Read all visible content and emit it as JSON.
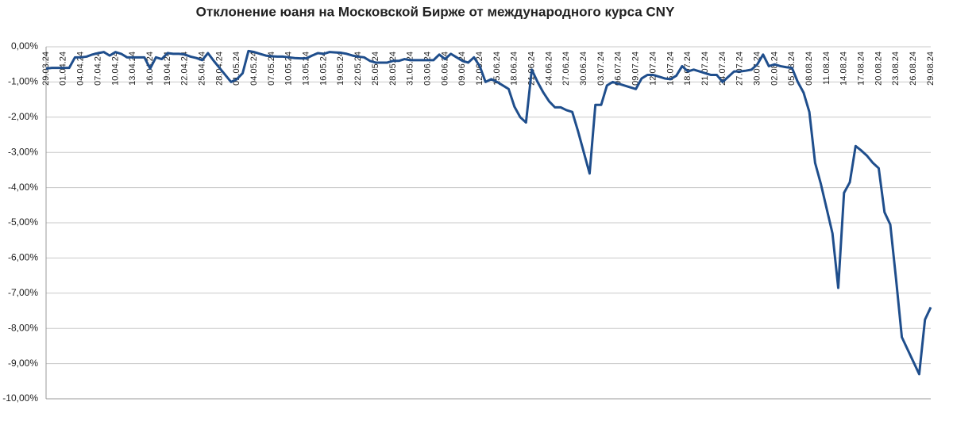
{
  "chart_data": {
    "type": "line",
    "title": "Отклонение юаня на Московской Бирже от международного курса CNY",
    "categories": [
      "29.03.24",
      null,
      null,
      "01.04.24",
      null,
      null,
      "04.04.24",
      null,
      null,
      "07.04.24",
      null,
      null,
      "10.04.24",
      null,
      null,
      "13.04.24",
      null,
      null,
      "16.04.24",
      null,
      null,
      "19.04.24",
      null,
      null,
      "22.04.24",
      null,
      null,
      "25.04.24",
      null,
      null,
      "28.04.24",
      null,
      null,
      "01.05.24",
      null,
      null,
      "04.05.24",
      null,
      null,
      "07.05.24",
      null,
      null,
      "10.05.24",
      null,
      null,
      "13.05.24",
      null,
      null,
      "16.05.24",
      null,
      null,
      "19.05.24",
      null,
      null,
      "22.05.24",
      null,
      null,
      "25.05.24",
      null,
      null,
      "28.05.24",
      null,
      null,
      "31.05.24",
      null,
      null,
      "03.06.24",
      null,
      null,
      "06.06.24",
      null,
      null,
      "09.06.24",
      null,
      null,
      "12.06.24",
      null,
      null,
      "15.06.24",
      null,
      null,
      "18.06.24",
      null,
      null,
      "21.06.24",
      null,
      null,
      "24.06.24",
      null,
      null,
      "27.06.24",
      null,
      null,
      "30.06.24",
      null,
      null,
      "03.07.24",
      null,
      null,
      "06.07.24",
      null,
      null,
      "09.07.24",
      null,
      null,
      "12.07.24",
      null,
      null,
      "15.07.24",
      null,
      null,
      "18.07.24",
      null,
      null,
      "21.07.24",
      null,
      null,
      "24.07.24",
      null,
      null,
      "27.07.24",
      null,
      null,
      "30.07.24",
      null,
      null,
      "02.08.24",
      null,
      null,
      "05.08.24",
      null,
      null,
      "08.08.24",
      null,
      null,
      "11.08.24",
      null,
      null,
      "14.08.24",
      null,
      null,
      "17.08.24",
      null,
      null,
      "20.08.24",
      null,
      null,
      "23.08.24",
      null,
      null,
      "26.08.24",
      null,
      null,
      "29.08.24"
    ],
    "values": [
      -0.62,
      -0.6,
      -0.6,
      -0.6,
      -0.6,
      -0.3,
      -0.3,
      -0.28,
      -0.22,
      -0.18,
      -0.15,
      -0.25,
      -0.15,
      -0.2,
      -0.3,
      -0.3,
      -0.3,
      -0.3,
      -0.62,
      -0.3,
      -0.35,
      -0.18,
      -0.2,
      -0.2,
      -0.22,
      -0.28,
      -0.32,
      -0.38,
      -0.18,
      -0.4,
      -0.6,
      -0.8,
      -1.0,
      -0.92,
      -0.75,
      -0.12,
      -0.15,
      -0.2,
      -0.25,
      -0.27,
      -0.28,
      -0.28,
      -0.3,
      -0.32,
      -0.33,
      -0.33,
      -0.25,
      -0.18,
      -0.2,
      -0.15,
      -0.16,
      -0.17,
      -0.2,
      -0.25,
      -0.28,
      -0.3,
      -0.4,
      -0.45,
      -0.45,
      -0.45,
      -0.4,
      -0.4,
      -0.35,
      -0.38,
      -0.38,
      -0.38,
      -0.38,
      -0.38,
      -0.22,
      -0.35,
      -0.2,
      -0.3,
      -0.4,
      -0.45,
      -0.3,
      -0.55,
      -1.0,
      -0.92,
      -1.0,
      -1.1,
      -1.2,
      -1.7,
      -2.0,
      -2.15,
      -0.65,
      -1.0,
      -1.3,
      -1.55,
      -1.72,
      -1.72,
      -1.8,
      -1.85,
      -2.4,
      -3.0,
      -3.6,
      -1.65,
      -1.65,
      -1.1,
      -1.0,
      -1.05,
      -1.1,
      -1.15,
      -1.2,
      -0.9,
      -0.8,
      -0.8,
      -0.85,
      -0.9,
      -0.92,
      -0.82,
      -0.55,
      -0.7,
      -0.65,
      -0.7,
      -0.75,
      -0.8,
      -0.8,
      -1.0,
      -0.85,
      -0.7,
      -0.7,
      -0.68,
      -0.65,
      -0.5,
      -0.22,
      -0.55,
      -0.5,
      -0.55,
      -0.58,
      -0.6,
      -1.0,
      -1.3,
      -1.85,
      -3.3,
      -3.9,
      -4.6,
      -5.3,
      -6.85,
      -4.15,
      -3.85,
      -2.82,
      -2.95,
      -3.1,
      -3.3,
      -3.45,
      -4.7,
      -5.05,
      -6.6,
      -8.25,
      -8.6,
      -8.95,
      -9.3,
      -7.75,
      -7.4
    ],
    "color": "#1f4e8c",
    "ylim": [
      -10,
      0
    ],
    "yticks": [
      {
        "value": 0,
        "label": "0,00%"
      },
      {
        "value": -1,
        "label": "-1,00%"
      },
      {
        "value": -2,
        "label": "-2,00%"
      },
      {
        "value": -3,
        "label": "-3,00%"
      },
      {
        "value": -4,
        "label": "-4,00%"
      },
      {
        "value": -5,
        "label": "-5,00%"
      },
      {
        "value": -6,
        "label": "-6,00%"
      },
      {
        "value": -7,
        "label": "-7,00%"
      },
      {
        "value": -8,
        "label": "-8,00%"
      },
      {
        "value": -9,
        "label": "-9,00%"
      },
      {
        "value": -10,
        "label": "-10,00%"
      }
    ],
    "grid": true
  }
}
